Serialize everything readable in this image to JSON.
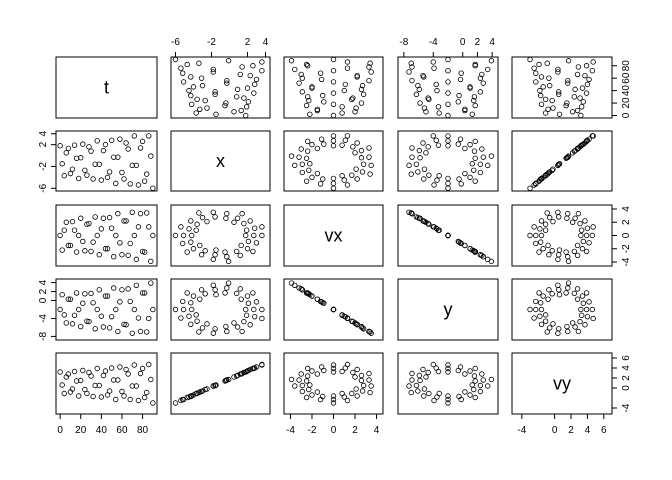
{
  "chart_data": {
    "type": "scatter_matrix",
    "variables": [
      {
        "name": "t",
        "lim": [
          -4,
          94
        ],
        "ticks": [
          0,
          20,
          40,
          60,
          80
        ],
        "values": [
          0,
          2,
          4,
          6,
          8,
          10,
          12,
          14,
          16,
          18,
          20,
          22,
          24,
          26,
          28,
          30,
          32,
          34,
          36,
          38,
          40,
          42,
          44,
          46,
          48,
          50,
          52,
          54,
          56,
          58,
          60,
          62,
          64,
          66,
          68,
          70,
          72,
          74,
          76,
          78,
          80,
          82,
          84,
          86,
          88,
          90
        ]
      },
      {
        "name": "x",
        "lim": [
          -6.5,
          4.5
        ],
        "ticks": [
          -6,
          -2,
          2,
          4
        ],
        "values": [
          1.8,
          -1.5,
          -3.7,
          0.5,
          1.3,
          -3.3,
          -2.5,
          1.9,
          -0.5,
          -4.2,
          -0.4,
          2.1,
          -2.7,
          -3.6,
          1.6,
          0.8,
          -4.3,
          -1.6,
          2.7,
          -1.6,
          -4.5,
          0.9,
          2.0,
          -4.0,
          -3.0,
          2.8,
          -0.3,
          -5.1,
          -0.3,
          3.0,
          -3.1,
          -4.3,
          2.3,
          1.2,
          -5.2,
          -1.8,
          3.6,
          -1.8,
          -5.4,
          1.4,
          2.6,
          -4.7,
          -3.4,
          3.6,
          -0.1,
          -6.0
        ]
      },
      {
        "name": "vx",
        "lim": [
          -4.6,
          4.6
        ],
        "ticks": [
          -4,
          -2,
          0,
          2,
          4
        ],
        "values": [
          0,
          -2.2,
          0.8,
          2.0,
          -1.5,
          -1.5,
          2.1,
          0.8,
          -2.5,
          0,
          2.6,
          -0.9,
          -2.3,
          1.7,
          1.8,
          -2.4,
          -1.0,
          2.8,
          0,
          -2.9,
          1.0,
          2.6,
          -2.0,
          -2.0,
          2.7,
          1.1,
          -3.2,
          0,
          3.3,
          -1.1,
          -2.9,
          2.2,
          2.2,
          -3.0,
          -1.2,
          3.5,
          0,
          -3.6,
          1.3,
          3.3,
          -2.4,
          -2.5,
          3.4,
          1.3,
          -3.9,
          0
        ]
      },
      {
        "name": "y",
        "lim": [
          -8.8,
          4.8
        ],
        "ticks": [
          -8,
          -4,
          0,
          2,
          4
        ],
        "values": [
          -2,
          1.3,
          -3.2,
          -5.0,
          0.3,
          0.3,
          -5.2,
          -3.3,
          1.7,
          -2,
          -5.8,
          -0.6,
          1.5,
          -4.6,
          -4.7,
          1.6,
          -0.5,
          -6.3,
          -2,
          2.4,
          -3.5,
          -5.9,
          1.0,
          1.0,
          -6.1,
          -3.6,
          2.8,
          -2,
          -6.9,
          -0.3,
          2.4,
          -5.3,
          -5.4,
          2.6,
          -0.2,
          -7.3,
          -2,
          3.4,
          -3.9,
          -6.9,
          1.7,
          1.7,
          -7.0,
          -4.0,
          3.9,
          -2
        ]
      },
      {
        "name": "vy",
        "lim": [
          -5.2,
          7.0
        ],
        "ticks": [
          -4,
          0,
          2,
          4,
          6
        ],
        "values": [
          3.2,
          0.6,
          -1.1,
          2.2,
          2.8,
          -0.8,
          -0.2,
          3.3,
          1.4,
          -1.6,
          1.5,
          3.5,
          -0.3,
          -1.1,
          3.1,
          2.4,
          -1.7,
          0.5,
          3.9,
          0.5,
          -1.8,
          2.5,
          3.4,
          -1.4,
          -0.6,
          4.0,
          1.6,
          -2.3,
          1.6,
          4.2,
          -0.7,
          -1.6,
          3.7,
          2.8,
          -2.3,
          0.4,
          4.6,
          0.4,
          -2.5,
          2.9,
          3.9,
          -1.9,
          -0.9,
          4.7,
          1.7,
          -3.0
        ]
      }
    ]
  }
}
